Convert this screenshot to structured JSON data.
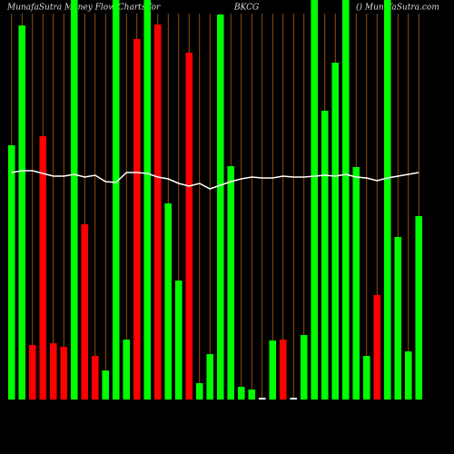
{
  "chart_data": {
    "type": "bar",
    "title_left": "MunafaSutra  Money  Flow  Charts for",
    "title_symbol": "BKCG",
    "title_right": "() MunafaSutra.com",
    "categories": [
      null,
      null,
      null,
      null,
      null,
      null,
      null,
      null,
      null,
      null,
      null,
      null,
      null,
      null,
      null,
      null,
      null,
      null,
      null,
      null,
      null,
      null,
      null,
      null,
      null,
      null,
      null,
      null,
      null,
      null,
      null,
      null,
      null,
      null,
      null,
      null,
      null,
      null,
      null,
      null
    ],
    "series": [
      {
        "name": null,
        "type": "bar",
        "colors": [
          "#00ff00",
          "#00ff00",
          "#ff0000",
          "#ff0000",
          "#ff0000",
          "#ff0000",
          "#00ff00",
          "#ff0000",
          "#ff0000",
          "#00ff00",
          "#00ff00",
          "#00ff00",
          "#ff0000",
          "#00ff00",
          "#ff0000",
          "#00ff00",
          "#00ff00",
          "#ff0000",
          "#00ff00",
          "#00ff00",
          "#00ff00",
          "#00ff00",
          "#00ff00",
          "#00ff00",
          "#ffffff",
          "#00ff00",
          "#ff0000",
          "#ffffff",
          "#00ff00",
          "#00ff00",
          "#00ff00",
          "#00ff00",
          "#00ff00",
          "#00ff00",
          "#00ff00",
          "#ff0000",
          "#00ff00",
          "#00ff00",
          "#00ff00",
          "#00ff00"
        ],
        "values": [
          280,
          412,
          60,
          290,
          62,
          58,
          440,
          193,
          48,
          32,
          440,
          66,
          397,
          440,
          413,
          216,
          131,
          382,
          18,
          50,
          424,
          257,
          14,
          11,
          2,
          65,
          66,
          2,
          71,
          440,
          318,
          371,
          440,
          256,
          48,
          115,
          440,
          179,
          53,
          202
        ]
      },
      {
        "name": null,
        "type": "line",
        "color": "#ffffff",
        "values": [
          250,
          252,
          252,
          249,
          246,
          246,
          248,
          245,
          247,
          240,
          239,
          250,
          250,
          249,
          245,
          243,
          238,
          235,
          238,
          232,
          236,
          240,
          243,
          245,
          244,
          244,
          246,
          245,
          245,
          246,
          247,
          246,
          248,
          245,
          244,
          241,
          244,
          246,
          248,
          250
        ]
      }
    ],
    "ylim": [
      0,
      440
    ],
    "grid_color": "#b8600b",
    "grid": true
  }
}
